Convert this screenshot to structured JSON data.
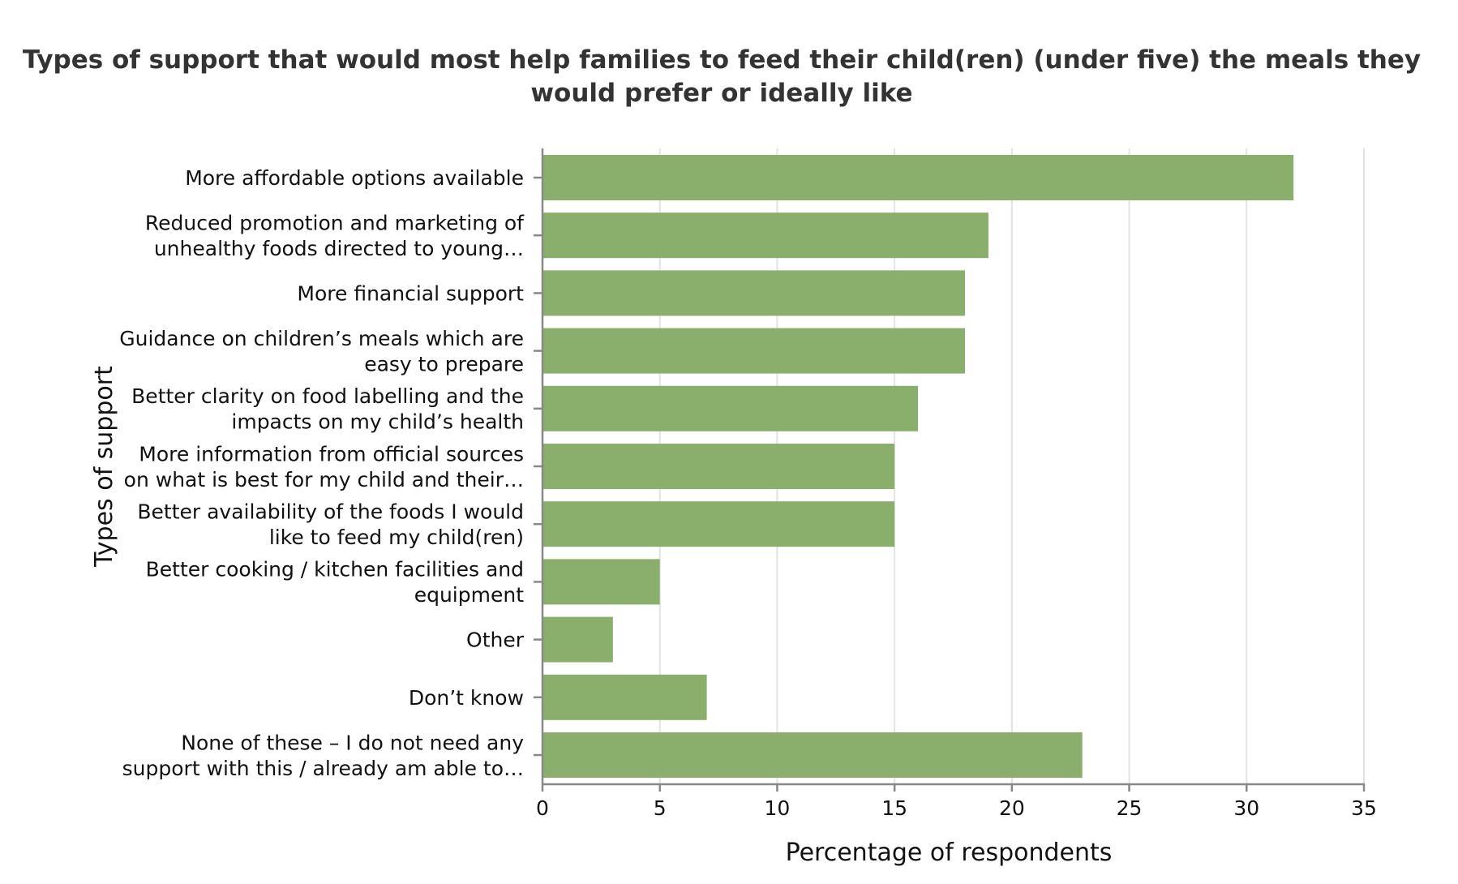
{
  "chart_data": {
    "type": "bar",
    "orientation": "horizontal",
    "title": "Types of support that would most help families to feed their child(ren) (under five) the meals they would prefer or ideally like",
    "title_lines": [
      "Types of support that would most help families to feed their child(ren) (under five) the meals they",
      "would prefer or ideally like"
    ],
    "xlabel": "Percentage of respondents",
    "ylabel": "Types of support",
    "xlim": [
      0,
      35
    ],
    "xticks": [
      0,
      5,
      10,
      15,
      20,
      25,
      30,
      35
    ],
    "grid": true,
    "bar_color": "#8aae6c",
    "categories": [
      [
        "More affordable options available"
      ],
      [
        "Reduced promotion and marketing of",
        "unhealthy foods directed to young…"
      ],
      [
        "More financial support"
      ],
      [
        "Guidance on children’s meals which are",
        "easy to prepare"
      ],
      [
        "Better clarity on food labelling and the",
        "impacts on my child’s health"
      ],
      [
        "More information from official sources",
        "on what is best for my child and their…"
      ],
      [
        "Better availability of the foods I would",
        "like to feed my child(ren)"
      ],
      [
        "Better cooking / kitchen facilities and",
        "equipment"
      ],
      [
        "Other"
      ],
      [
        "Don’t know"
      ],
      [
        "None of these – I do not need any",
        "support with this / already am able to…"
      ]
    ],
    "values": [
      32,
      19,
      18,
      18,
      16,
      15,
      15,
      5,
      3,
      7,
      23
    ]
  }
}
